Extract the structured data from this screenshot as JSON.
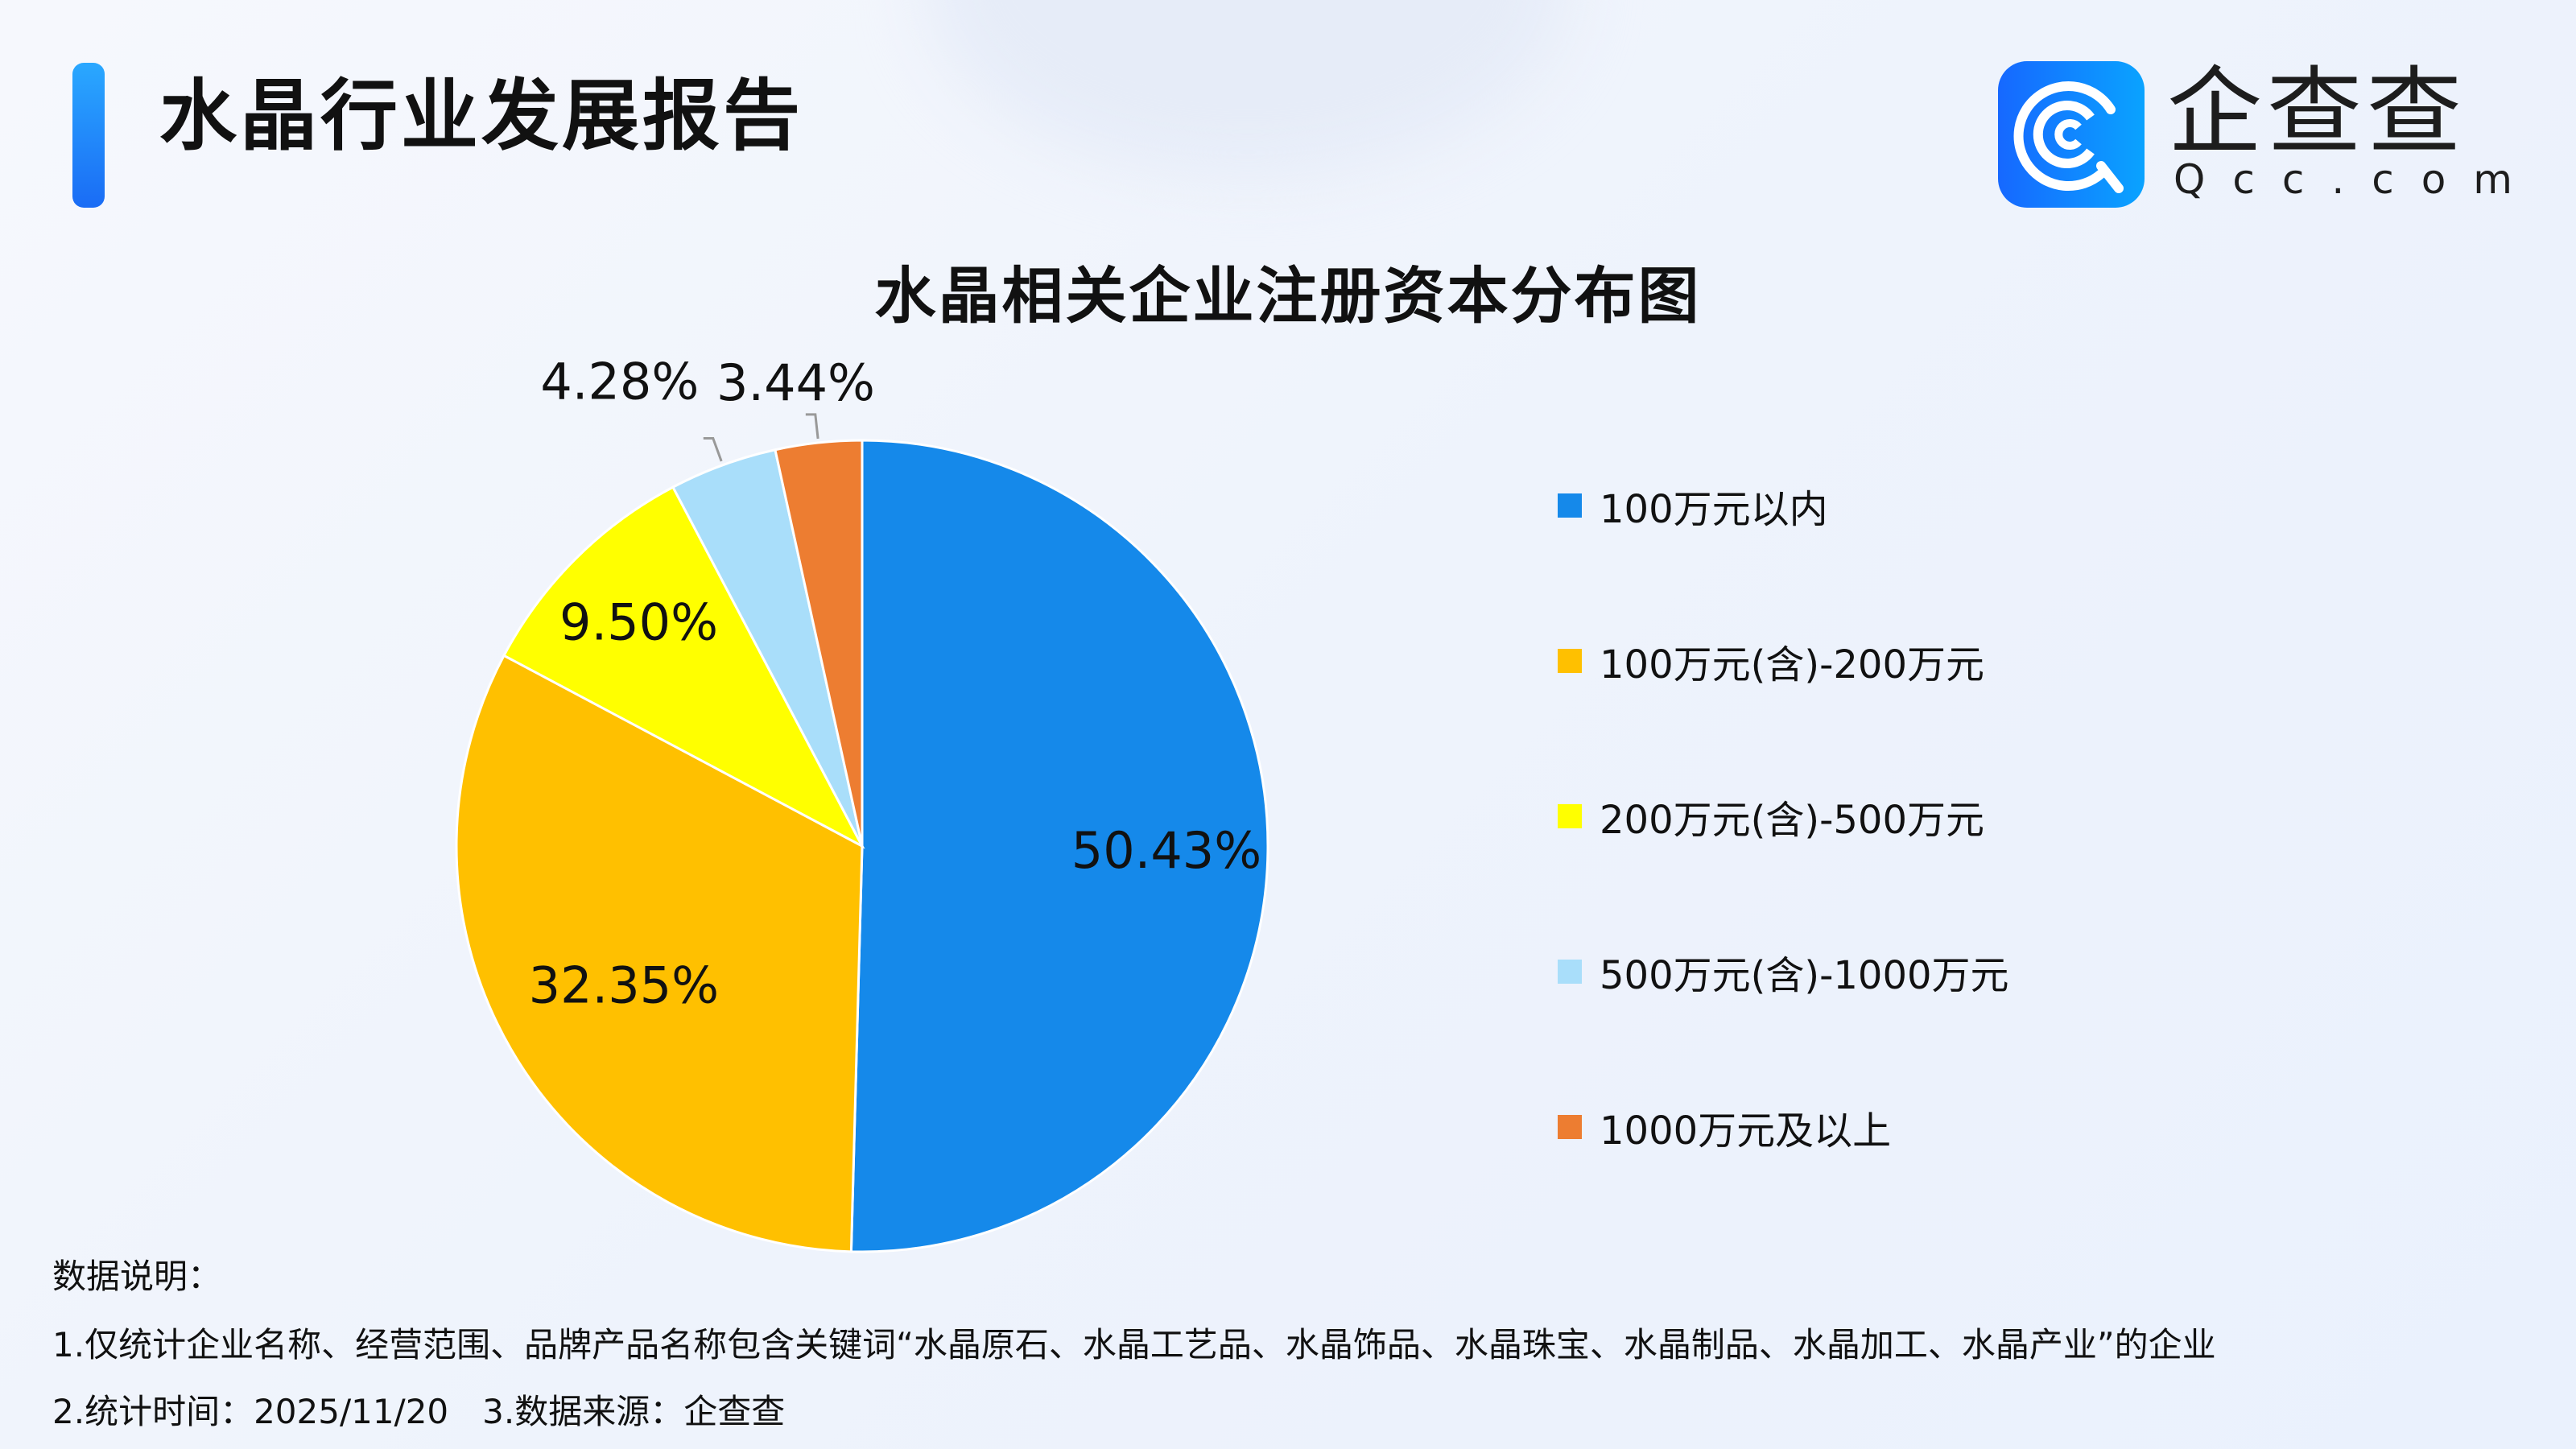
{
  "header": {
    "title": "水晶行业发展报告"
  },
  "logo": {
    "name": "企查查",
    "domain": "Qcc.com"
  },
  "chart_data": {
    "type": "pie",
    "title": "水晶相关企业注册资本分布图",
    "categories": [
      "100万元以内",
      "100万元(含)-200万元",
      "200万元(含)-500万元",
      "500万元(含)-1000万元",
      "1000万元及以上"
    ],
    "values": [
      50.43,
      32.35,
      9.5,
      4.28,
      3.44
    ],
    "labels": [
      "50.43%",
      "32.35%",
      "9.50%",
      "4.28%",
      "3.44%"
    ],
    "colors": [
      "#1589EA",
      "#FFC000",
      "#FFFF00",
      "#A9DEFA",
      "#ED7D31"
    ],
    "start": "top",
    "direction": "clockwise",
    "legend_position": "right"
  },
  "footer": {
    "heading": "数据说明：",
    "line1": "1.仅统计企业名称、经营范围、品牌产品名称包含关键词“水晶原石、水晶工艺品、水晶饰品、水晶珠宝、水晶制品、水晶加工、水晶产业”的企业",
    "line2": "2.统计时间：2025/11/20　3.数据来源：企查查"
  }
}
